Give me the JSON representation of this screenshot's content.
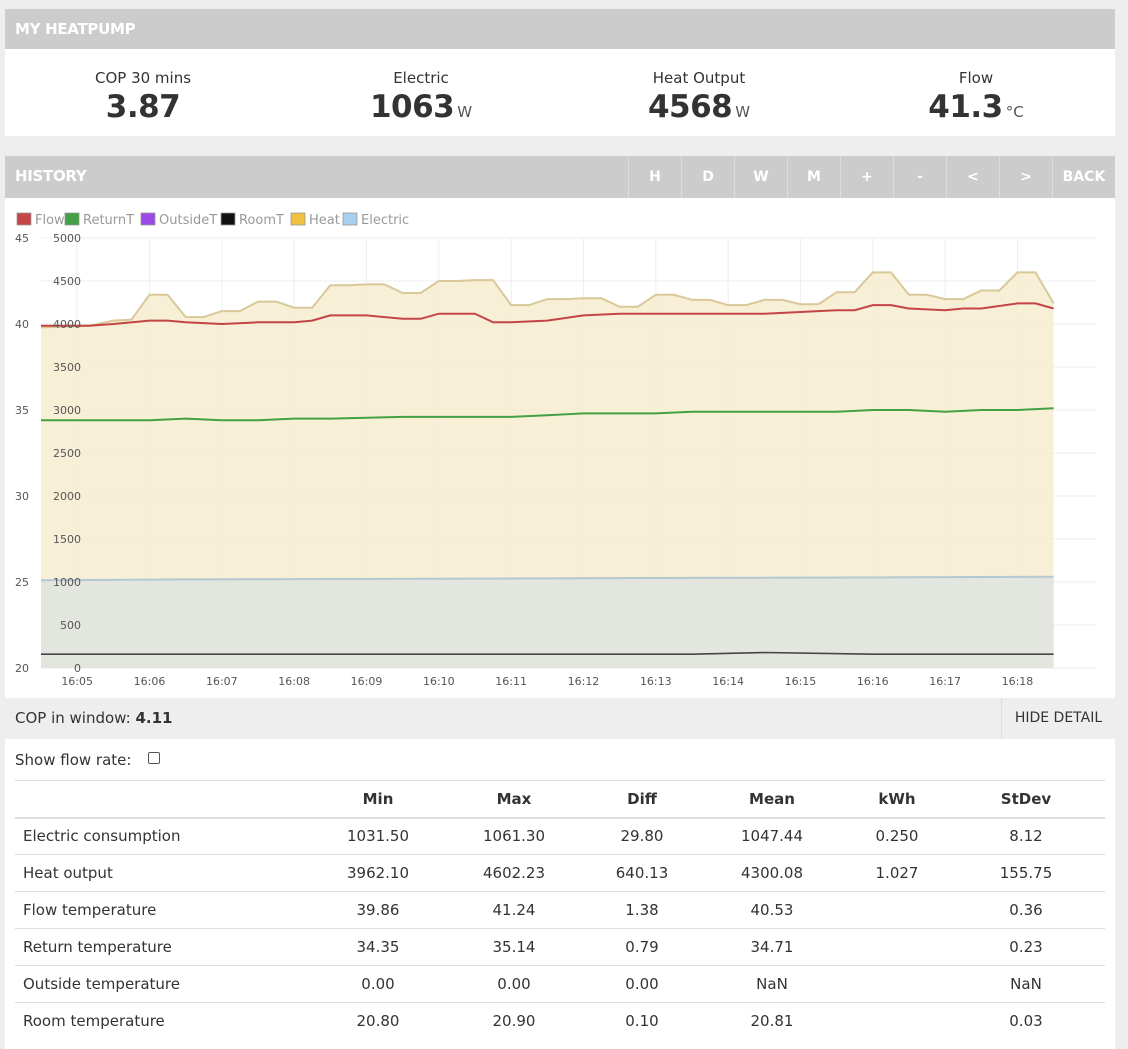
{
  "header": {
    "title": "MY HEATPUMP"
  },
  "stats": [
    {
      "label": "COP 30 mins",
      "value": "3.87",
      "unit": ""
    },
    {
      "label": "Electric",
      "value": "1063",
      "unit": "W"
    },
    {
      "label": "Heat Output",
      "value": "4568",
      "unit": "W"
    },
    {
      "label": "Flow",
      "value": "41.3",
      "unit": "°C"
    }
  ],
  "history": {
    "title": "HISTORY",
    "buttons": [
      "H",
      "D",
      "W",
      "M",
      "+",
      "-",
      "<",
      ">",
      "BACK"
    ]
  },
  "legend": [
    {
      "name": "FlowT",
      "color": "#c44545"
    },
    {
      "name": "ReturnT",
      "color": "#44a044"
    },
    {
      "name": "OutsideT",
      "color": "#9b4ae6"
    },
    {
      "name": "RoomT",
      "color": "#111111"
    },
    {
      "name": "Heat",
      "color": "#f0c040"
    },
    {
      "name": "Electric",
      "color": "#a9cfee"
    }
  ],
  "chart_data": {
    "type": "line",
    "x_ticks": [
      "16:05",
      "16:06",
      "16:07",
      "16:08",
      "16:09",
      "16:10",
      "16:11",
      "16:12",
      "16:13",
      "16:14",
      "16:15",
      "16:16",
      "16:17",
      "16:18"
    ],
    "y_left_ticks": [
      "45",
      "40",
      "35",
      "30",
      "25",
      "20"
    ],
    "y_left_range": [
      20,
      45
    ],
    "y_right_ticks": [
      "5000",
      "4500",
      "4000",
      "3500",
      "3000",
      "2500",
      "2000",
      "1500",
      "1000",
      "500",
      "0"
    ],
    "y_right_range": [
      0,
      5000
    ],
    "x_range_minutes": [
      0,
      14.6
    ],
    "series": [
      {
        "name": "Heat",
        "axis": "right",
        "color": "#f0c040",
        "x": [
          0,
          0.33,
          0.67,
          1.0,
          1.25,
          1.5,
          1.75,
          2.0,
          2.25,
          2.5,
          2.75,
          3.0,
          3.25,
          3.5,
          3.75,
          4.0,
          4.25,
          4.5,
          4.75,
          5.0,
          5.25,
          5.5,
          5.75,
          6.0,
          6.25,
          6.5,
          6.75,
          7.0,
          7.25,
          7.5,
          7.75,
          8.0,
          8.25,
          8.5,
          8.75,
          9.0,
          9.25,
          9.5,
          9.75,
          10.0,
          10.25,
          10.5,
          10.75,
          11.0,
          11.25,
          11.5,
          11.75,
          12.0,
          12.25,
          12.5,
          12.75,
          13.0,
          13.25,
          13.5,
          13.75,
          14.0
        ],
        "y": [
          3960,
          3970,
          3980,
          4040,
          4050,
          4340,
          4340,
          4080,
          4080,
          4150,
          4150,
          4260,
          4260,
          4190,
          4190,
          4450,
          4450,
          4460,
          4460,
          4360,
          4360,
          4500,
          4500,
          4510,
          4510,
          4220,
          4220,
          4290,
          4290,
          4300,
          4300,
          4200,
          4200,
          4340,
          4340,
          4280,
          4280,
          4220,
          4220,
          4280,
          4280,
          4230,
          4230,
          4370,
          4370,
          4600,
          4600,
          4340,
          4340,
          4290,
          4290,
          4390,
          4390,
          4600,
          4600,
          4240
        ]
      },
      {
        "name": "Electric",
        "axis": "right",
        "color": "#a9cfee",
        "x": [
          0,
          2,
          4,
          6,
          8,
          10,
          12,
          14
        ],
        "y": [
          1020,
          1030,
          1035,
          1040,
          1045,
          1050,
          1055,
          1061
        ]
      },
      {
        "name": "FlowT",
        "axis": "left",
        "color": "#c44545",
        "x": [
          0,
          0.67,
          1.0,
          1.5,
          1.75,
          2.0,
          2.5,
          3.0,
          3.5,
          3.75,
          4.0,
          4.5,
          5.0,
          5.25,
          5.5,
          6.0,
          6.25,
          6.5,
          7.0,
          7.5,
          8.0,
          8.5,
          9.0,
          9.5,
          10.0,
          10.5,
          11.0,
          11.25,
          11.5,
          11.75,
          12.0,
          12.5,
          12.75,
          13.0,
          13.5,
          13.75,
          14.0
        ],
        "y": [
          39.9,
          39.9,
          40.0,
          40.2,
          40.2,
          40.1,
          40.0,
          40.1,
          40.1,
          40.2,
          40.5,
          40.5,
          40.3,
          40.3,
          40.6,
          40.6,
          40.1,
          40.1,
          40.2,
          40.5,
          40.6,
          40.6,
          40.6,
          40.6,
          40.6,
          40.7,
          40.8,
          40.8,
          41.1,
          41.1,
          40.9,
          40.8,
          40.9,
          40.9,
          41.2,
          41.2,
          40.9
        ]
      },
      {
        "name": "ReturnT",
        "axis": "left",
        "color": "#44a044",
        "x": [
          0,
          0.5,
          1.0,
          1.5,
          2.0,
          2.5,
          3.0,
          3.5,
          4.0,
          5.0,
          5.5,
          6.0,
          6.5,
          7.0,
          7.5,
          8.0,
          8.5,
          9.0,
          10.0,
          10.5,
          11.0,
          11.5,
          12.0,
          12.5,
          13.0,
          13.5,
          14.0
        ],
        "y": [
          34.4,
          34.4,
          34.4,
          34.4,
          34.5,
          34.4,
          34.4,
          34.5,
          34.5,
          34.6,
          34.6,
          34.6,
          34.6,
          34.7,
          34.8,
          34.8,
          34.8,
          34.9,
          34.9,
          34.9,
          34.9,
          35.0,
          35.0,
          34.9,
          35.0,
          35.0,
          35.1
        ]
      },
      {
        "name": "RoomT",
        "axis": "left",
        "color": "#444444",
        "x": [
          0,
          9,
          10,
          11.5,
          14
        ],
        "y": [
          20.8,
          20.8,
          20.9,
          20.8,
          20.8
        ]
      }
    ]
  },
  "cop": {
    "label": "COP in window: ",
    "value": "4.11",
    "hide_label": "HIDE DETAIL"
  },
  "detail": {
    "flowrate_label": "Show flow rate:",
    "columns": [
      "",
      "Min",
      "Max",
      "Diff",
      "Mean",
      "kWh",
      "StDev"
    ],
    "rows": [
      [
        "Electric consumption",
        "1031.50",
        "1061.30",
        "29.80",
        "1047.44",
        "0.250",
        "8.12"
      ],
      [
        "Heat output",
        "3962.10",
        "4602.23",
        "640.13",
        "4300.08",
        "1.027",
        "155.75"
      ],
      [
        "Flow temperature",
        "39.86",
        "41.24",
        "1.38",
        "40.53",
        "",
        "0.36"
      ],
      [
        "Return temperature",
        "34.35",
        "35.14",
        "0.79",
        "34.71",
        "",
        "0.23"
      ],
      [
        "Outside temperature",
        "0.00",
        "0.00",
        "0.00",
        "NaN",
        "",
        "NaN"
      ],
      [
        "Room temperature",
        "20.80",
        "20.90",
        "0.10",
        "20.81",
        "",
        "0.03"
      ]
    ]
  }
}
